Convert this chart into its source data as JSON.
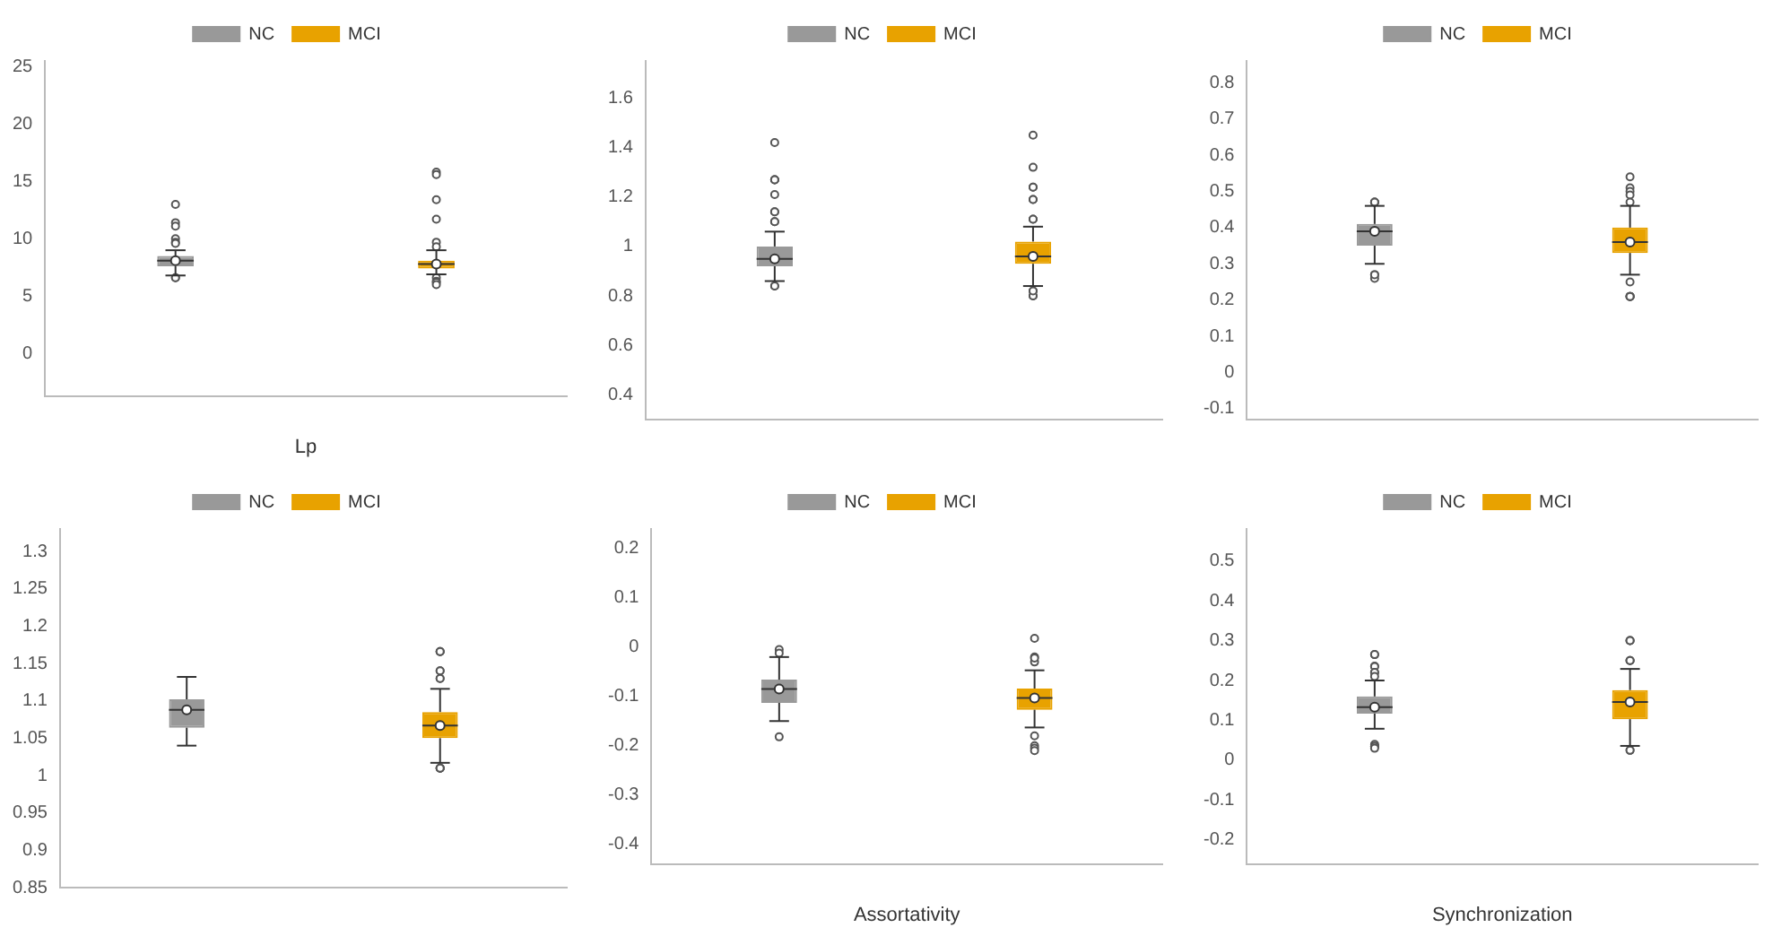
{
  "chart_data": [
    {
      "type": "box",
      "xlabel": "Lp",
      "categories": [
        null,
        null
      ],
      "ylim": [
        -3.7,
        25.5
      ],
      "yticks": [
        0,
        5,
        10,
        15,
        20,
        25
      ],
      "grid": false,
      "legend": "top",
      "series": [
        {
          "name": "NC",
          "color": "#999999",
          "boxes": [
            {
              "low": 6.8,
              "q1": 7.6,
              "median": 8.1,
              "q3": 8.5,
              "high": 9.0,
              "mean": 8.1,
              "outliers": [
                13,
                11.4,
                11.1,
                10,
                9.7,
                9.6,
                6.6,
                6.6
              ]
            },
            null
          ]
        },
        {
          "name": "MCI",
          "color": "#e8a200",
          "boxes": [
            null,
            {
              "low": 6.9,
              "q1": 7.4,
              "median": 7.8,
              "q3": 8.1,
              "high": 9.0,
              "mean": 7.8,
              "outliers": [
                15.8,
                15.6,
                13.4,
                11.7,
                9.7,
                9.3,
                6.6,
                6.3,
                6.2,
                6.0
              ]
            }
          ]
        }
      ]
    },
    {
      "type": "box",
      "categories": [
        null,
        null
      ],
      "ylim": [
        0.3,
        1.75
      ],
      "yticks": [
        0.4,
        0.6,
        0.8,
        1,
        1.2,
        1.4,
        1.6
      ],
      "grid": false,
      "legend": "top",
      "series": [
        {
          "name": "NC",
          "color": "#999999",
          "boxes": [
            {
              "low": 0.86,
              "q1": 0.92,
              "median": 0.95,
              "q3": 1.0,
              "high": 1.06,
              "mean": 0.95,
              "outliers": [
                1.42,
                1.27,
                1.27,
                1.27,
                1.21,
                1.14,
                1.14,
                1.1,
                1.1,
                0.84,
                0.84
              ]
            },
            null
          ]
        },
        {
          "name": "MCI",
          "color": "#e8a200",
          "boxes": [
            null,
            {
              "low": 0.84,
              "q1": 0.93,
              "median": 0.96,
              "q3": 1.02,
              "high": 1.08,
              "mean": 0.96,
              "outliers": [
                1.45,
                1.32,
                1.24,
                1.24,
                1.19,
                1.19,
                1.11,
                1.11,
                0.82,
                0.8,
                0.8,
                0.82
              ]
            }
          ]
        }
      ]
    },
    {
      "type": "box",
      "categories": [
        null,
        null
      ],
      "ylim": [
        -0.13,
        0.86
      ],
      "yticks": [
        -0.1,
        0,
        0.1,
        0.2,
        0.3,
        0.4,
        0.5,
        0.6,
        0.7,
        0.8
      ],
      "grid": false,
      "legend": "top",
      "series": [
        {
          "name": "NC",
          "color": "#999999",
          "boxes": [
            {
              "low": 0.3,
              "q1": 0.35,
              "median": 0.39,
              "q3": 0.41,
              "high": 0.46,
              "mean": 0.39,
              "outliers": [
                0.47,
                0.47,
                0.47,
                0.27,
                0.26,
                0.27
              ]
            },
            null
          ]
        },
        {
          "name": "MCI",
          "color": "#e8a200",
          "boxes": [
            null,
            {
              "low": 0.27,
              "q1": 0.33,
              "median": 0.36,
              "q3": 0.4,
              "high": 0.46,
              "mean": 0.36,
              "outliers": [
                0.54,
                0.51,
                0.5,
                0.49,
                0.47,
                0.25,
                0.21,
                0.21,
                0.21,
                0.21
              ]
            }
          ]
        }
      ]
    },
    {
      "type": "box",
      "categories": [
        null,
        null
      ],
      "ylim": [
        0.85,
        1.33
      ],
      "yticks": [
        0.85,
        0.9,
        0.95,
        1,
        1.05,
        1.1,
        1.15,
        1.2,
        1.25,
        1.3
      ],
      "grid": false,
      "legend": "top",
      "series": [
        {
          "name": "NC",
          "color": "#999999",
          "boxes": [
            {
              "low": 1.04,
              "q1": 1.064,
              "median": 1.088,
              "q3": 1.102,
              "high": 1.132,
              "mean": 1.088
            },
            null
          ]
        },
        {
          "name": "MCI",
          "color": "#e8a200",
          "boxes": [
            null,
            {
              "low": 1.017,
              "q1": 1.05,
              "median": 1.067,
              "q3": 1.085,
              "high": 1.116,
              "mean": 1.067,
              "outliers": [
                1.166,
                1.166,
                1.166,
                1.14,
                1.14,
                1.13,
                1.13,
                1.01,
                1.01,
                1.01,
                1.01
              ]
            }
          ]
        }
      ]
    },
    {
      "type": "box",
      "xlabel": "Assortativity",
      "categories": [
        null,
        null
      ],
      "ylim": [
        -0.44,
        0.24
      ],
      "yticks": [
        -0.4,
        -0.3,
        -0.2,
        -0.1,
        0,
        0.1,
        0.2
      ],
      "grid": false,
      "legend": "top",
      "series": [
        {
          "name": "NC",
          "color": "#999999",
          "boxes": [
            {
              "low": -0.15,
              "q1": -0.113,
              "median": -0.085,
              "q3": -0.066,
              "high": -0.02,
              "mean": -0.085,
              "outliers": [
                -0.005,
                -0.012,
                -0.182
              ]
            },
            null
          ]
        },
        {
          "name": "MCI",
          "color": "#e8a200",
          "boxes": [
            null,
            {
              "low": -0.163,
              "q1": -0.127,
              "median": -0.103,
              "q3": -0.084,
              "high": -0.047,
              "mean": -0.103,
              "outliers": [
                0.018,
                -0.02,
                -0.03,
                -0.022,
                -0.18,
                -0.2,
                -0.205,
                -0.21
              ]
            }
          ]
        }
      ]
    },
    {
      "type": "box",
      "xlabel": "Synchronization",
      "categories": [
        null,
        null
      ],
      "ylim": [
        -0.26,
        0.58
      ],
      "yticks": [
        -0.2,
        -0.1,
        0,
        0.1,
        0.2,
        0.3,
        0.4,
        0.5
      ],
      "grid": false,
      "legend": "top",
      "series": [
        {
          "name": "NC",
          "color": "#999999",
          "boxes": [
            {
              "low": 0.079,
              "q1": 0.117,
              "median": 0.133,
              "q3": 0.16,
              "high": 0.2,
              "mean": 0.133,
              "outliers": [
                0.265,
                0.265,
                0.236,
                0.235,
                0.22,
                0.22,
                0.21,
                0.04,
                0.035,
                0.035,
                0.03
              ]
            },
            null
          ]
        },
        {
          "name": "MCI",
          "color": "#e8a200",
          "boxes": [
            null,
            {
              "low": 0.036,
              "q1": 0.103,
              "median": 0.146,
              "q3": 0.176,
              "high": 0.229,
              "mean": 0.146,
              "outliers": [
                0.3,
                0.3,
                0.3,
                0.25,
                0.25,
                0.25,
                0.025,
                0.025
              ]
            }
          ]
        }
      ]
    }
  ]
}
